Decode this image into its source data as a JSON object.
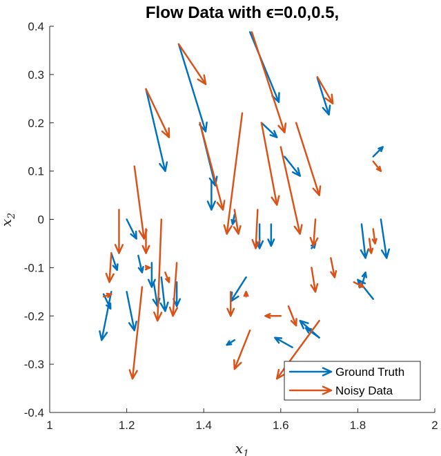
{
  "chart_data": {
    "type": "quiver",
    "title": "Flow Data with ϵ=0.0,0.5,",
    "xlabel": "x1",
    "ylabel": "x2",
    "xlim": [
      1,
      2
    ],
    "ylim": [
      -0.4,
      0.4
    ],
    "xticks": [
      "1",
      "1.2",
      "1.4",
      "1.6",
      "1.8",
      "2"
    ],
    "yticks": [
      "0.4",
      "0.3",
      "0.2",
      "0.1",
      "0",
      "-0.1",
      "-0.2",
      "-0.3",
      "-0.4"
    ],
    "legend_position": "bottom-right",
    "grid": false,
    "series": [
      {
        "name": "Ground Truth",
        "color": "#0072BD",
        "arrows": [
          [
            1.335,
            0.363,
            1.405,
            0.182
          ],
          [
            1.52,
            0.388,
            1.595,
            0.243
          ],
          [
            1.695,
            0.293,
            1.725,
            0.217
          ],
          [
            1.25,
            0.27,
            1.3,
            0.1
          ],
          [
            1.39,
            0.2,
            1.43,
            0.07
          ],
          [
            1.42,
            0.08,
            1.42,
            0.02
          ],
          [
            1.55,
            0.2,
            1.59,
            0.17
          ],
          [
            1.61,
            0.13,
            1.65,
            0.09
          ],
          [
            1.84,
            0.13,
            1.865,
            0.15
          ],
          [
            1.2,
            0.0,
            1.225,
            -0.04
          ],
          [
            1.48,
            0.01,
            1.475,
            -0.01
          ],
          [
            1.545,
            -0.01,
            1.545,
            -0.06
          ],
          [
            1.575,
            -0.01,
            1.575,
            -0.055
          ],
          [
            1.68,
            -0.06,
            1.69,
            -0.05
          ],
          [
            1.81,
            -0.01,
            1.82,
            -0.08
          ],
          [
            1.86,
            0.0,
            1.875,
            -0.08
          ],
          [
            1.16,
            -0.07,
            1.175,
            -0.105
          ],
          [
            1.23,
            -0.075,
            1.24,
            -0.11
          ],
          [
            1.14,
            -0.155,
            1.158,
            -0.185
          ],
          [
            1.16,
            -0.15,
            1.135,
            -0.25
          ],
          [
            1.2,
            -0.15,
            1.22,
            -0.23
          ],
          [
            1.265,
            -0.09,
            1.265,
            -0.14
          ],
          [
            1.27,
            -0.13,
            1.28,
            -0.18
          ],
          [
            1.29,
            -0.12,
            1.3,
            -0.19
          ],
          [
            1.33,
            -0.13,
            1.33,
            -0.18
          ],
          [
            1.51,
            -0.12,
            1.47,
            -0.17
          ],
          [
            1.48,
            -0.25,
            1.46,
            -0.26
          ],
          [
            1.7,
            -0.245,
            1.65,
            -0.21
          ],
          [
            1.63,
            -0.265,
            1.585,
            -0.245
          ],
          [
            1.7,
            -0.245,
            1.665,
            -0.225
          ],
          [
            1.84,
            -0.165,
            1.8,
            -0.125
          ],
          [
            1.81,
            -0.14,
            1.82,
            -0.11
          ]
        ]
      },
      {
        "name": "Noisy Data",
        "color": "#D95319",
        "arrows": [
          [
            1.335,
            0.363,
            1.405,
            0.28
          ],
          [
            1.525,
            0.388,
            1.61,
            0.18
          ],
          [
            1.695,
            0.295,
            1.735,
            0.24
          ],
          [
            1.25,
            0.27,
            1.31,
            0.17
          ],
          [
            1.22,
            0.11,
            1.245,
            -0.04
          ],
          [
            1.39,
            0.2,
            1.45,
            0.02
          ],
          [
            1.5,
            0.22,
            1.46,
            -0.03
          ],
          [
            1.55,
            0.2,
            1.59,
            0.03
          ],
          [
            1.6,
            0.15,
            1.65,
            -0.03
          ],
          [
            1.64,
            0.2,
            1.7,
            0.05
          ],
          [
            1.48,
            0.02,
            1.49,
            -0.03
          ],
          [
            1.54,
            0.02,
            1.535,
            -0.06
          ],
          [
            1.69,
            0.0,
            1.685,
            -0.055
          ],
          [
            1.73,
            -0.08,
            1.74,
            -0.12
          ],
          [
            1.84,
            0.12,
            1.86,
            0.1
          ],
          [
            1.83,
            -0.04,
            1.835,
            -0.07
          ],
          [
            1.84,
            -0.02,
            1.845,
            -0.05
          ],
          [
            1.18,
            0.02,
            1.18,
            -0.07
          ],
          [
            1.16,
            -0.07,
            1.155,
            -0.13
          ],
          [
            1.14,
            -0.16,
            1.16,
            -0.155
          ],
          [
            1.25,
            -0.02,
            1.25,
            -0.07
          ],
          [
            1.29,
            0.0,
            1.28,
            -0.21
          ],
          [
            1.24,
            -0.14,
            1.215,
            -0.33
          ],
          [
            1.25,
            -0.1,
            1.26,
            -0.1
          ],
          [
            1.3,
            -0.11,
            1.31,
            -0.13
          ],
          [
            1.33,
            -0.09,
            1.32,
            -0.2
          ],
          [
            1.47,
            -0.15,
            1.47,
            -0.2
          ],
          [
            1.52,
            -0.23,
            1.48,
            -0.31
          ],
          [
            1.51,
            -0.16,
            1.51,
            -0.15
          ],
          [
            1.6,
            -0.2,
            1.56,
            -0.2
          ],
          [
            1.68,
            -0.1,
            1.69,
            -0.15
          ],
          [
            1.7,
            -0.21,
            1.59,
            -0.33
          ],
          [
            1.79,
            -0.13,
            1.815,
            -0.14
          ],
          [
            1.62,
            -0.18,
            1.64,
            -0.22
          ]
        ]
      }
    ]
  }
}
